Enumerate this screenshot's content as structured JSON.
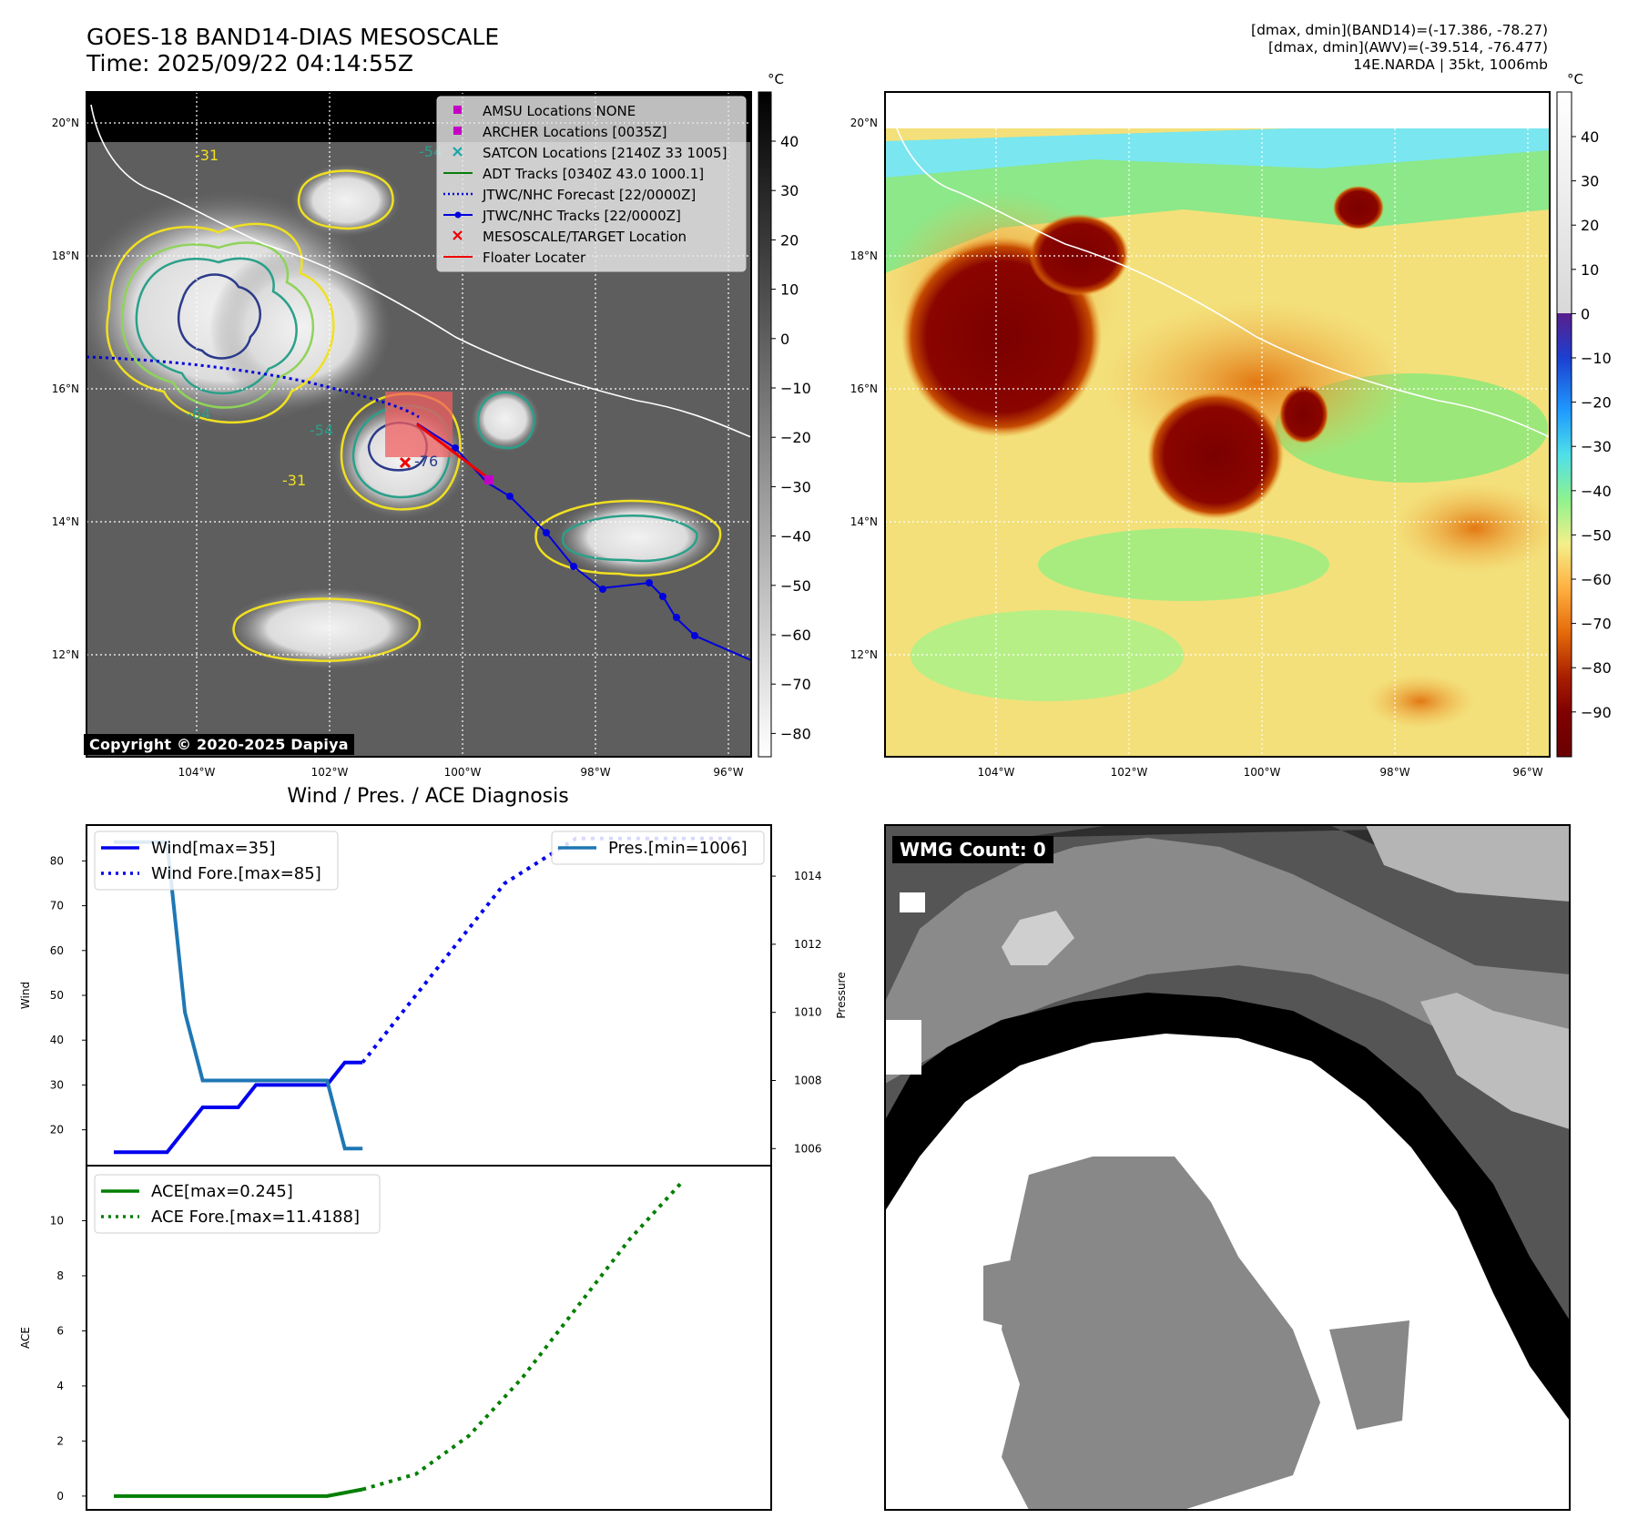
{
  "header": {
    "title_line1": "GOES-18 BAND14-DIAS MESOSCALE",
    "title_line2": "Time: 2025/09/22 04:14:55Z",
    "stats_line1": "[dmax, dmin](BAND14)=(-17.386, -78.27)",
    "stats_line2": "[dmax, dmin](AWV)=(-39.514, -76.477)",
    "stats_line3": "14E.NARDA | 35kt, 1006mb"
  },
  "map": {
    "lat_labels": [
      "20°N",
      "18°N",
      "16°N",
      "14°N",
      "12°N"
    ],
    "lon_labels": [
      "104°W",
      "102°W",
      "100°W",
      "98°W",
      "96°W"
    ],
    "contour_labels": [
      "-31",
      "-54",
      "-64",
      "-76"
    ],
    "copyright": "Copyright © 2020-2025 Dapiya",
    "legend": [
      {
        "label": "AMSU Locations NONE",
        "color": "#c400c4",
        "marker": "square"
      },
      {
        "label": "ARCHER Locations [0035Z]",
        "color": "#c400c4",
        "marker": "square"
      },
      {
        "label": "SATCON Locations [2140Z 33 1005]",
        "color": "#1aa6a6",
        "marker": "x"
      },
      {
        "label": "ADT Tracks [0340Z 43.0 1000.1]",
        "color": "#0a7d0a",
        "marker": "line"
      },
      {
        "label": "JTWC/NHC Forecast [22/0000Z]",
        "color": "#0000dd",
        "marker": "dotted"
      },
      {
        "label": "JTWC/NHC Tracks [22/0000Z]",
        "color": "#0000dd",
        "marker": "line-dot"
      },
      {
        "label": "MESOSCALE/TARGET Location",
        "color": "#ee0000",
        "marker": "x"
      },
      {
        "label": "Floater Locater",
        "color": "#ee0000",
        "marker": "line"
      }
    ]
  },
  "colorbar_gray": {
    "unit": "°C",
    "ticks": [
      "40",
      "30",
      "20",
      "10",
      "0",
      "−10",
      "−20",
      "−30",
      "−40",
      "−50",
      "−60",
      "−70",
      "−80"
    ]
  },
  "colorbar_awv": {
    "unit": "°C",
    "ticks": [
      "40",
      "30",
      "20",
      "10",
      "0",
      "−10",
      "−20",
      "−30",
      "−40",
      "−50",
      "−60",
      "−70",
      "−80",
      "−90"
    ]
  },
  "wmg": {
    "label": "WMG Count: 0"
  },
  "diagnosis": {
    "title": "Wind / Pres. / ACE Diagnosis"
  },
  "chart_data": [
    {
      "type": "line",
      "title": "Wind / Pres. / ACE Diagnosis",
      "ylabel": "Wind",
      "ylabel_right": "Pressure",
      "ylim": [
        12,
        88
      ],
      "ylim_right": [
        1005.5,
        1015.5
      ],
      "yticks": [
        20,
        30,
        40,
        50,
        60,
        70,
        80
      ],
      "yticks_right": [
        1006,
        1008,
        1010,
        1012,
        1014
      ],
      "x": [
        0,
        1,
        2,
        3,
        4,
        5,
        6,
        7,
        8,
        9,
        10,
        11,
        12,
        13,
        14,
        15,
        16,
        17,
        18,
        19,
        20,
        21,
        22,
        23,
        24,
        25,
        26,
        27,
        28,
        29,
        30,
        31,
        32,
        33,
        34,
        35
      ],
      "series": [
        {
          "name": "Wind[max=35]",
          "axis": "left",
          "style": "solid",
          "color": "#0000ee",
          "points": [
            [
              0,
              15
            ],
            [
              3,
              15
            ],
            [
              5,
              25
            ],
            [
              7,
              25
            ],
            [
              8,
              30
            ],
            [
              12,
              30
            ],
            [
              13,
              35
            ],
            [
              14,
              35
            ]
          ]
        },
        {
          "name": "Wind Fore.[max=85]",
          "axis": "left",
          "style": "dotted",
          "color": "#0000ee",
          "points": [
            [
              14,
              35
            ],
            [
              16,
              45
            ],
            [
              18,
              55
            ],
            [
              20,
              65
            ],
            [
              22,
              75
            ],
            [
              24,
              80
            ],
            [
              26,
              85
            ],
            [
              35,
              85
            ]
          ]
        },
        {
          "name": "Pres.[min=1006]",
          "axis": "right",
          "style": "solid",
          "color": "#1f77b4",
          "points": [
            [
              0,
              1015
            ],
            [
              3,
              1015
            ],
            [
              4,
              1010
            ],
            [
              5,
              1008
            ],
            [
              12,
              1008
            ],
            [
              13,
              1006
            ],
            [
              14,
              1006
            ]
          ]
        }
      ]
    },
    {
      "type": "line",
      "ylabel": "ACE",
      "ylim": [
        -0.5,
        12
      ],
      "yticks": [
        0,
        2,
        4,
        6,
        8,
        10
      ],
      "series": [
        {
          "name": "ACE[max=0.245]",
          "style": "solid",
          "color": "#007f00",
          "points": [
            [
              0,
              0
            ],
            [
              12,
              0
            ],
            [
              14,
              0.245
            ]
          ]
        },
        {
          "name": "ACE Fore.[max=11.4188]",
          "style": "dotted",
          "color": "#007f00",
          "points": [
            [
              14,
              0.245
            ],
            [
              17,
              0.8
            ],
            [
              20,
              2.2
            ],
            [
              23,
              4.3
            ],
            [
              26,
              6.8
            ],
            [
              29,
              9.3
            ],
            [
              32,
              11.4188
            ]
          ]
        }
      ]
    }
  ]
}
